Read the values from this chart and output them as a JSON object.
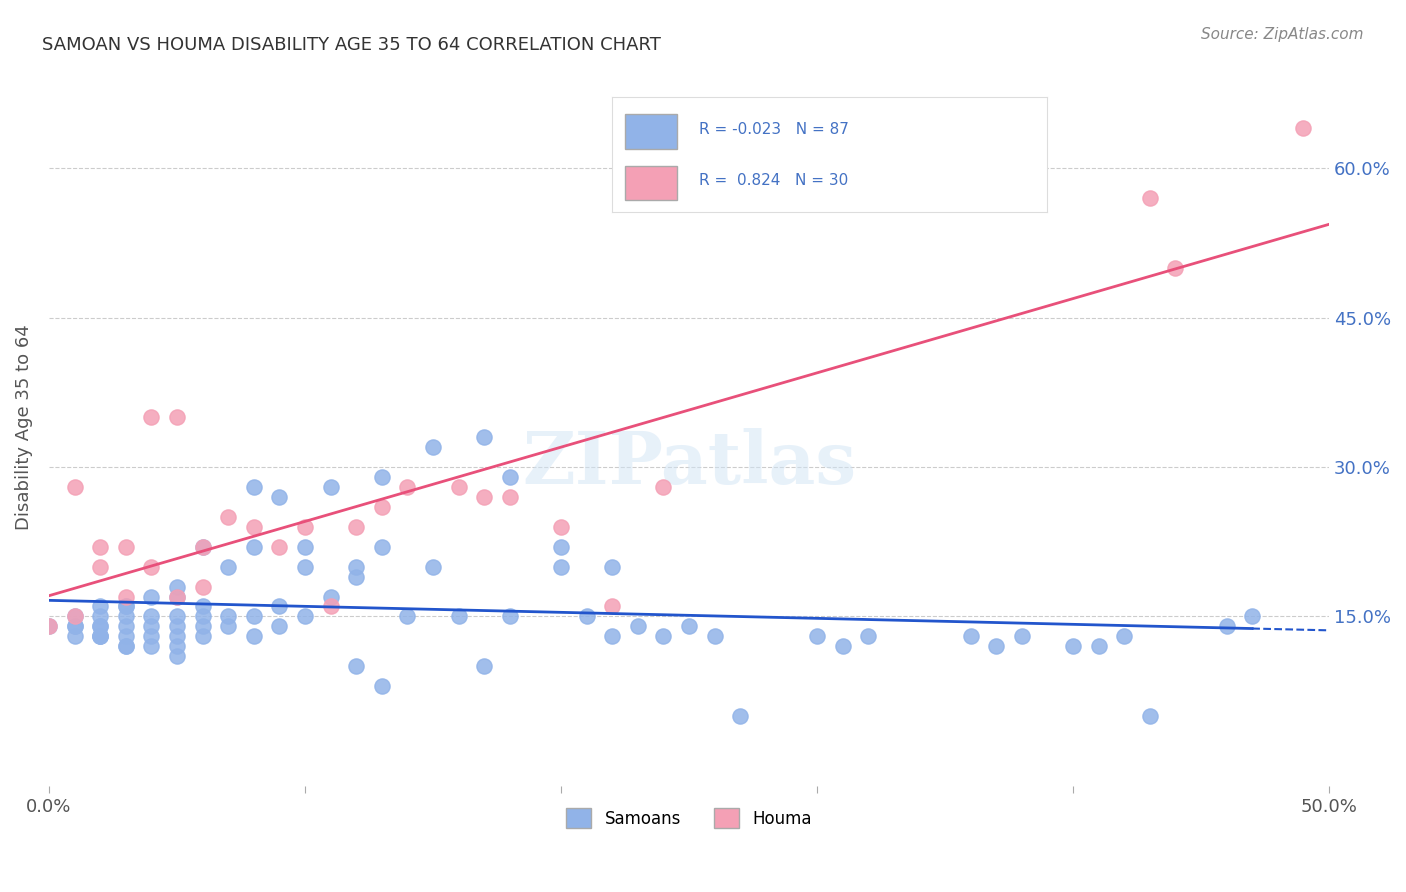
{
  "title": "SAMOAN VS HOUMA DISABILITY AGE 35 TO 64 CORRELATION CHART",
  "source": "Source: ZipAtlas.com",
  "xlabel": "",
  "ylabel": "Disability Age 35 to 64",
  "xlim": [
    0.0,
    0.5
  ],
  "ylim": [
    -0.02,
    0.7
  ],
  "x_ticks": [
    0.0,
    0.1,
    0.2,
    0.3,
    0.4,
    0.5
  ],
  "x_tick_labels": [
    "0.0%",
    "",
    "",
    "",
    "",
    "50.0%"
  ],
  "y_ticks": [
    0.15,
    0.3,
    0.45,
    0.6
  ],
  "y_tick_labels": [
    "15.0%",
    "30.0%",
    "45.0%",
    "60.0%"
  ],
  "legend_labels": [
    "Samoans",
    "Houma"
  ],
  "samoans_color": "#91b3e8",
  "houma_color": "#f4a0b5",
  "samoans_line_color": "#2255cc",
  "houma_line_color": "#e8507a",
  "R_samoans": -0.023,
  "N_samoans": 87,
  "R_houma": 0.824,
  "N_houma": 30,
  "watermark": "ZIPatlas",
  "background_color": "#ffffff",
  "samoans_x": [
    0.0,
    0.01,
    0.01,
    0.01,
    0.01,
    0.02,
    0.02,
    0.02,
    0.02,
    0.02,
    0.02,
    0.02,
    0.03,
    0.03,
    0.03,
    0.03,
    0.03,
    0.03,
    0.03,
    0.04,
    0.04,
    0.04,
    0.04,
    0.04,
    0.05,
    0.05,
    0.05,
    0.05,
    0.05,
    0.05,
    0.05,
    0.06,
    0.06,
    0.06,
    0.06,
    0.06,
    0.07,
    0.07,
    0.07,
    0.08,
    0.08,
    0.08,
    0.08,
    0.09,
    0.09,
    0.09,
    0.1,
    0.1,
    0.1,
    0.11,
    0.11,
    0.12,
    0.12,
    0.12,
    0.13,
    0.13,
    0.13,
    0.14,
    0.15,
    0.15,
    0.16,
    0.17,
    0.17,
    0.18,
    0.18,
    0.2,
    0.2,
    0.21,
    0.22,
    0.22,
    0.23,
    0.24,
    0.25,
    0.26,
    0.27,
    0.3,
    0.31,
    0.32,
    0.36,
    0.37,
    0.38,
    0.4,
    0.41,
    0.42,
    0.43,
    0.46,
    0.47
  ],
  "samoans_y": [
    0.14,
    0.13,
    0.14,
    0.14,
    0.15,
    0.13,
    0.13,
    0.13,
    0.14,
    0.14,
    0.15,
    0.16,
    0.12,
    0.12,
    0.13,
    0.14,
    0.15,
    0.16,
    0.16,
    0.12,
    0.13,
    0.14,
    0.15,
    0.17,
    0.11,
    0.12,
    0.13,
    0.14,
    0.15,
    0.17,
    0.18,
    0.13,
    0.14,
    0.15,
    0.16,
    0.22,
    0.14,
    0.15,
    0.2,
    0.13,
    0.15,
    0.22,
    0.28,
    0.14,
    0.16,
    0.27,
    0.15,
    0.2,
    0.22,
    0.17,
    0.28,
    0.1,
    0.19,
    0.2,
    0.08,
    0.22,
    0.29,
    0.15,
    0.2,
    0.32,
    0.15,
    0.1,
    0.33,
    0.15,
    0.29,
    0.2,
    0.22,
    0.15,
    0.13,
    0.2,
    0.14,
    0.13,
    0.14,
    0.13,
    0.05,
    0.13,
    0.12,
    0.13,
    0.13,
    0.12,
    0.13,
    0.12,
    0.12,
    0.13,
    0.05,
    0.14,
    0.15
  ],
  "houma_x": [
    0.0,
    0.01,
    0.01,
    0.02,
    0.02,
    0.03,
    0.03,
    0.04,
    0.04,
    0.05,
    0.05,
    0.06,
    0.06,
    0.07,
    0.08,
    0.09,
    0.1,
    0.11,
    0.12,
    0.13,
    0.14,
    0.16,
    0.17,
    0.18,
    0.2,
    0.22,
    0.24,
    0.43,
    0.44,
    0.49
  ],
  "houma_y": [
    0.14,
    0.15,
    0.28,
    0.2,
    0.22,
    0.17,
    0.22,
    0.2,
    0.35,
    0.17,
    0.35,
    0.18,
    0.22,
    0.25,
    0.24,
    0.22,
    0.24,
    0.16,
    0.24,
    0.26,
    0.28,
    0.28,
    0.27,
    0.27,
    0.24,
    0.16,
    0.28,
    0.57,
    0.5,
    0.64
  ]
}
